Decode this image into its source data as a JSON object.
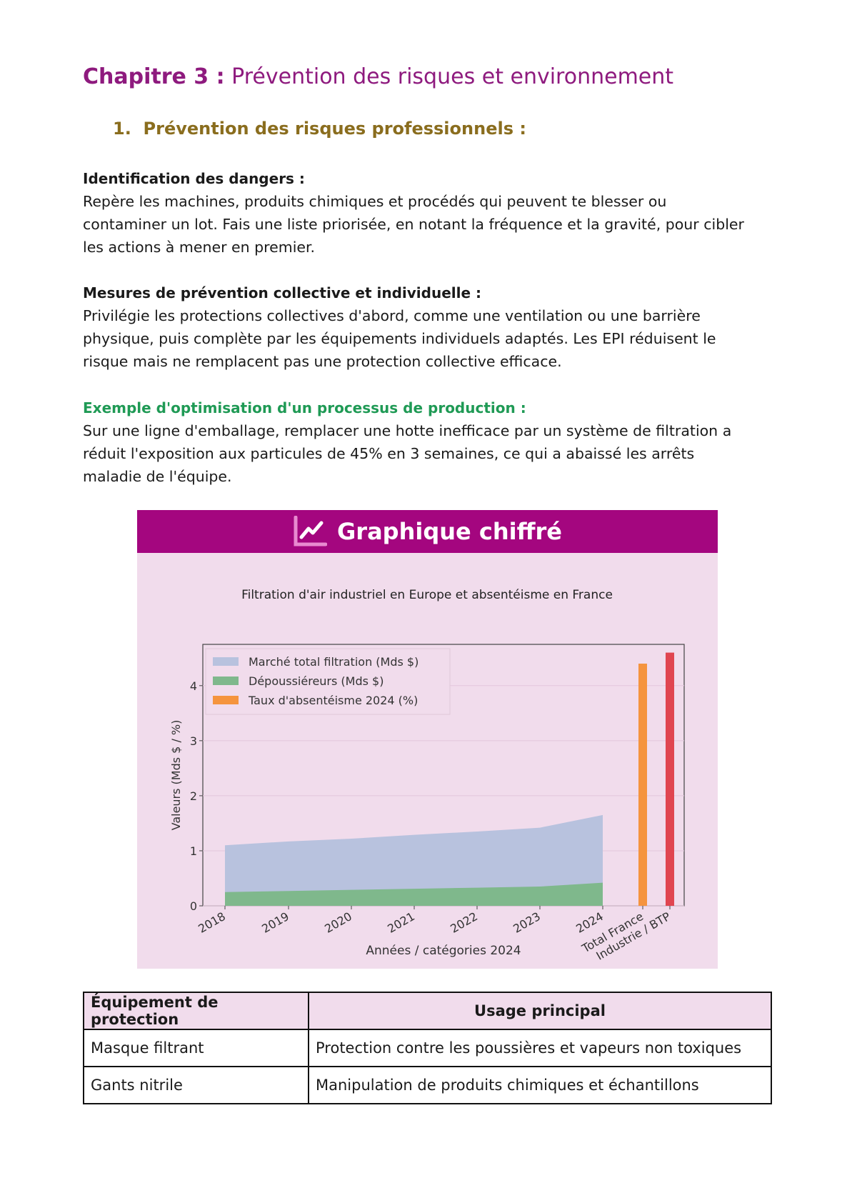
{
  "heading": {
    "chapter": "Chapitre 3 :",
    "title": "Prévention des risques et environnement"
  },
  "section1": {
    "number": "1.",
    "title": "Prévention des risques professionnels :"
  },
  "blocks": [
    {
      "title": "Identification des dangers :",
      "lines": [
        "Repère les machines, produits chimiques et procédés qui peuvent te blesser ou",
        "contaminer un lot. Fais une liste priorisée, en notant la fréquence et la gravité, pour cibler",
        "les actions à mener en premier."
      ]
    },
    {
      "title": "Mesures de prévention collective et individuelle :",
      "lines": [
        "Privilégie les protections collectives d'abord, comme une ventilation ou une barrière",
        "physique, puis complète par les équipements individuels adaptés. Les EPI réduisent le",
        "risque mais ne remplacent pas une protection collective efficace."
      ]
    },
    {
      "title": "Exemple d'optimisation d'un processus de production :",
      "lines": [
        "Sur une ligne d'emballage, remplacer une hotte inefficace par un système de filtration a",
        "réduit l'exposition aux particules de 45% en 3 semaines, ce qui a abaissé les arrêts",
        "maladie de l'équipe."
      ]
    }
  ],
  "chart_banner": {
    "icon": "line-chart-icon",
    "label": "Graphique chiffré"
  },
  "chart_data": {
    "type": "area+bar",
    "title": "Filtration d'air industriel en Europe et absentéisme en France",
    "xlabel": "Années / catégories 2024",
    "ylabel": "Valeurs (Mds $ / %)",
    "ylim": [
      0,
      4.75
    ],
    "yticks": [
      0,
      1,
      2,
      3,
      4
    ],
    "categories": [
      "2018",
      "2019",
      "2020",
      "2021",
      "2022",
      "2023",
      "2024",
      "Total France",
      "Industrie / BTP"
    ],
    "series": [
      {
        "name": "Marché total filtration (Mds $)",
        "type": "area",
        "color": "#b8c2de",
        "x": [
          "2018",
          "2019",
          "2020",
          "2021",
          "2022",
          "2023",
          "2024"
        ],
        "values": [
          1.1,
          1.17,
          1.22,
          1.29,
          1.35,
          1.42,
          1.65
        ]
      },
      {
        "name": "Dépoussiéreurs (Mds $)",
        "type": "area",
        "color": "#7fb88c",
        "x": [
          "2018",
          "2019",
          "2020",
          "2021",
          "2022",
          "2023",
          "2024"
        ],
        "values": [
          0.25,
          0.27,
          0.29,
          0.31,
          0.33,
          0.35,
          0.42
        ]
      },
      {
        "name": "Taux d'absentéisme 2024 (%)",
        "type": "bar",
        "color": "#f5943e",
        "x": [
          "Total France",
          "Industrie / BTP"
        ],
        "values": [
          4.4,
          4.6
        ],
        "colors": [
          "#f5943e",
          "#e04550"
        ]
      }
    ],
    "legend": "top-left",
    "grid": true
  },
  "table": {
    "headers": [
      "Équipement de protection",
      "Usage principal"
    ],
    "rows": [
      [
        "Masque filtrant",
        "Protection contre les poussières et vapeurs non toxiques"
      ],
      [
        "Gants nitrile",
        "Manipulation de produits chimiques et échantillons"
      ]
    ]
  }
}
